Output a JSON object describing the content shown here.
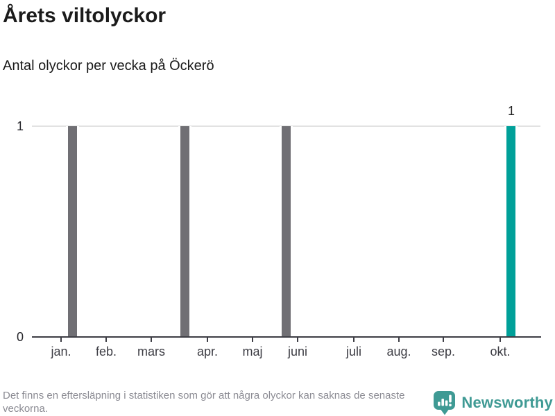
{
  "title": "Årets viltolyckor",
  "subtitle": "Antal olyckor per vecka på Öckerö",
  "footer": {
    "disclaimer": "Det finns en eftersläpning i statistiken som gör att några olyckor kan saknas de senaste veckorna.",
    "brand": "Newsworthy"
  },
  "colors": {
    "bar_default": "#706f74",
    "bar_highlight": "#00a099",
    "brand_teal": "#3f9a94",
    "axis": "#3d3d44",
    "gridline": "#e2e2e2",
    "footer_text": "#8b8b93"
  },
  "chart_data": {
    "type": "bar",
    "title": "Årets viltolyckor",
    "subtitle": "Antal olyckor per vecka på Öckerö",
    "xlabel": "",
    "ylabel": "",
    "x_unit": "week",
    "weeks_shown": 43,
    "ylim": [
      0,
      1
    ],
    "yticks": [
      1,
      0
    ],
    "grid": "y-top-only",
    "legend": "none",
    "bars": [
      {
        "week": 2,
        "value": 1,
        "highlight": false,
        "label": ""
      },
      {
        "week": 12,
        "value": 1,
        "highlight": false,
        "label": ""
      },
      {
        "week": 21,
        "value": 1,
        "highlight": false,
        "label": ""
      },
      {
        "week": 41,
        "value": 1,
        "highlight": true,
        "label": "1"
      }
    ],
    "month_ticks": [
      {
        "label": "jan.",
        "week": 1
      },
      {
        "label": "feb.",
        "week": 5
      },
      {
        "label": "mars",
        "week": 9
      },
      {
        "label": "apr.",
        "week": 14
      },
      {
        "label": "maj",
        "week": 18
      },
      {
        "label": "juni",
        "week": 22
      },
      {
        "label": "juli",
        "week": 27
      },
      {
        "label": "aug.",
        "week": 31
      },
      {
        "label": "sep.",
        "week": 35
      },
      {
        "label": "okt.",
        "week": 40
      }
    ]
  }
}
